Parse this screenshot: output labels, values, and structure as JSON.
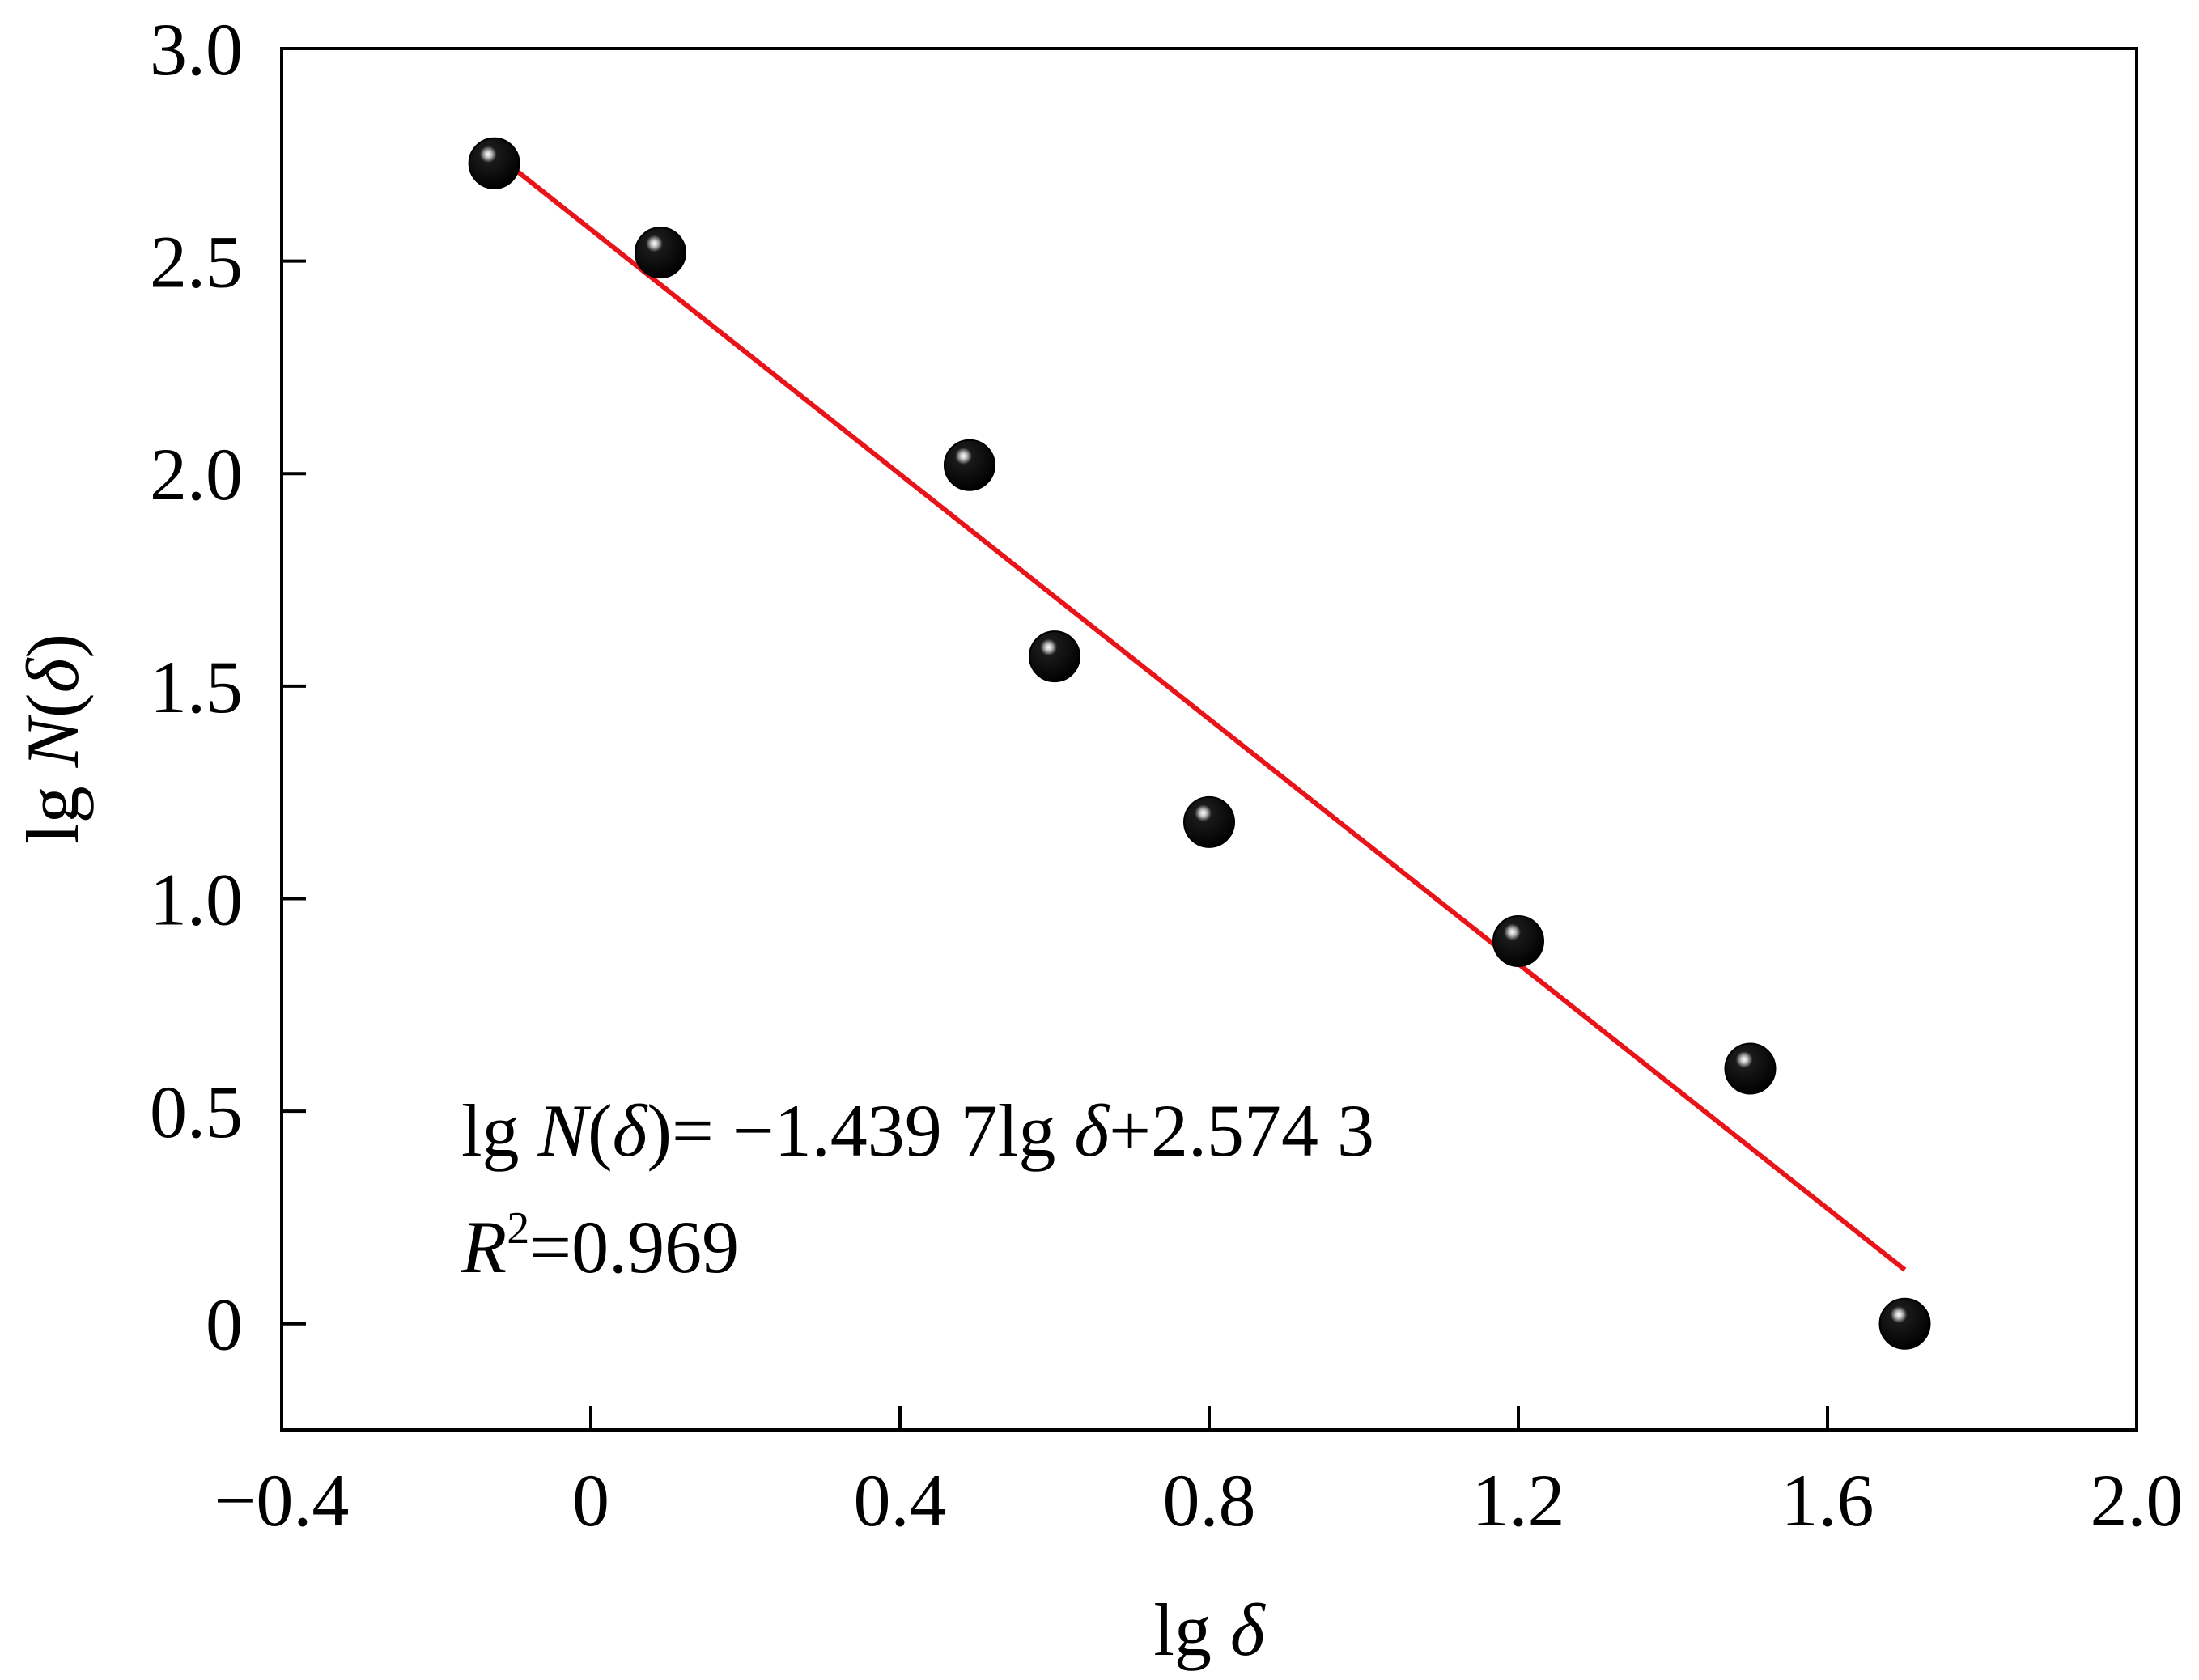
{
  "chart_data": {
    "type": "scatter",
    "xlabel": {
      "prefix": "lg ",
      "symbol": "δ"
    },
    "ylabel": {
      "prefix": "lg ",
      "func": "N",
      "open": "(",
      "symbol": "δ",
      "close": ")"
    },
    "xlim": [
      -0.4,
      2.0
    ],
    "ylim": [
      -0.25,
      3.0
    ],
    "xticks": [
      {
        "value": -0.4,
        "label": "−0.4"
      },
      {
        "value": 0,
        "label": "0"
      },
      {
        "value": 0.4,
        "label": "0.4"
      },
      {
        "value": 0.8,
        "label": "0.8"
      },
      {
        "value": 1.2,
        "label": "1.2"
      },
      {
        "value": 1.6,
        "label": "1.6"
      },
      {
        "value": 2.0,
        "label": "2.0"
      }
    ],
    "yticks": [
      {
        "value": 0,
        "label": "0"
      },
      {
        "value": 0.5,
        "label": "0.5"
      },
      {
        "value": 1.0,
        "label": "1.0"
      },
      {
        "value": 1.5,
        "label": "1.5"
      },
      {
        "value": 2.0,
        "label": "2.0"
      },
      {
        "value": 2.5,
        "label": "2.5"
      },
      {
        "value": 3.0,
        "label": "3.0"
      }
    ],
    "points": [
      {
        "x": -0.125,
        "y": 2.73
      },
      {
        "x": 0.09,
        "y": 2.52
      },
      {
        "x": 0.49,
        "y": 2.02
      },
      {
        "x": 0.6,
        "y": 1.57
      },
      {
        "x": 0.8,
        "y": 1.18
      },
      {
        "x": 1.2,
        "y": 0.9
      },
      {
        "x": 1.5,
        "y": 0.6
      },
      {
        "x": 1.7,
        "y": 0.0
      }
    ],
    "fit": {
      "slope": -1.4397,
      "intercept": 2.5743,
      "x_range": [
        -0.12,
        1.7
      ],
      "color": "#e8141a"
    },
    "equation": {
      "lhs_prefix": "lg ",
      "lhs_func": "N",
      "lhs_open": "(",
      "lhs_symbol": "δ",
      "lhs_close": ")",
      "equals": "= −1.439 7lg ",
      "rhs_symbol": "δ",
      "rhs_rest": "+2.574 3"
    },
    "r_squared": {
      "symbol": "R",
      "superscript": "2",
      "value_text": "=0.969"
    },
    "marker_color": "#000000",
    "grid": false,
    "legend": "none"
  }
}
